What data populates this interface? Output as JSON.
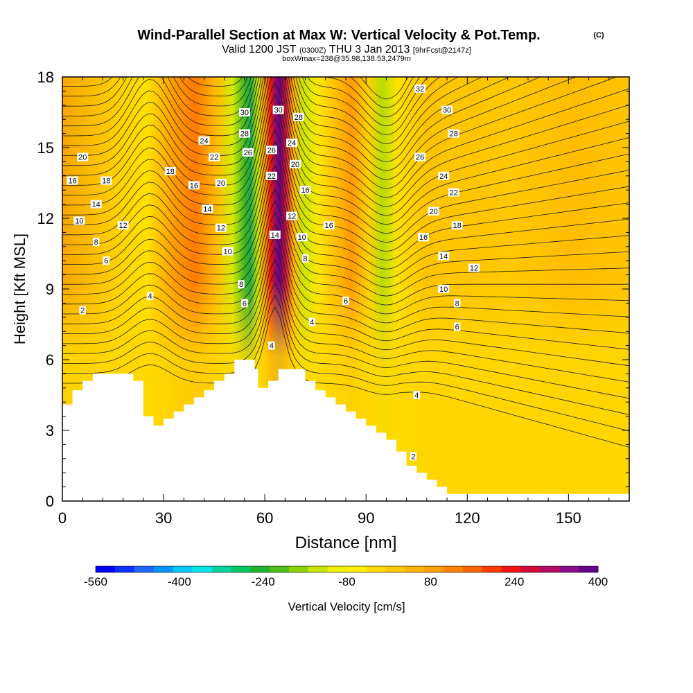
{
  "chart_data": {
    "type": "heatmap",
    "title": "Wind-Parallel Section at Max W: Vertical Velocity & Pot.Temp.",
    "title_mark": "(C)",
    "subtitle": {
      "valid": "Valid 1200 JST",
      "utc": "(0300Z)",
      "date": "THU 3 Jan 2013",
      "forecast": "[9hrFcst@2147z]",
      "boxwmax": "boxWmax=238@35.98,138.53,2479m"
    },
    "xlabel": "Distance [nm]",
    "ylabel": "Height [Kft MSL]",
    "xlim": [
      0,
      168
    ],
    "ylim": [
      0,
      18
    ],
    "x_ticks": [
      "0",
      "30",
      "60",
      "90",
      "120",
      "150"
    ],
    "x_tick_values": [
      0,
      30,
      60,
      90,
      120,
      150
    ],
    "y_ticks": [
      "0",
      "3",
      "6",
      "9",
      "12",
      "15",
      "18"
    ],
    "y_tick_values": [
      0,
      3,
      6,
      9,
      12,
      15,
      18
    ],
    "colorbar": {
      "label": "Vertical Velocity [cm/s]",
      "tick_labels": [
        "-560",
        "-400",
        "-240",
        "-80",
        "80",
        "240",
        "400"
      ],
      "colors": [
        "#0000ff",
        "#0b32ff",
        "#1e64ff",
        "#0096ff",
        "#00c8ff",
        "#00e6e6",
        "#00d2a0",
        "#00c864",
        "#1eb432",
        "#50be19",
        "#8cd200",
        "#c8e600",
        "#f0f000",
        "#fff000",
        "#ffdc00",
        "#ffc800",
        "#ffb400",
        "#ffa000",
        "#ff8200",
        "#ff6400",
        "#ff3c00",
        "#f01414",
        "#d20a3c",
        "#b40a64",
        "#8c0a8c",
        "#64008c"
      ]
    },
    "vertical_velocity_features": [
      {
        "name": "background",
        "value_range": [
          0,
          40
        ]
      },
      {
        "name": "updraft core",
        "x": 62,
        "y": [
          7,
          18
        ],
        "max_value": 400
      },
      {
        "name": "downdraft band",
        "x": 54,
        "y": [
          7,
          18
        ],
        "min_value": -160
      },
      {
        "name": "upwind updraft band",
        "x": 34,
        "y": [
          8,
          18
        ],
        "max_value": 240
      },
      {
        "name": "downwind downdraft band",
        "x": 91,
        "y": [
          10,
          18
        ],
        "min_value": -120
      }
    ],
    "theta_contour_labels": [
      {
        "text": "32",
        "x": 106,
        "y": 17.5
      },
      {
        "text": "30",
        "x": 114,
        "y": 16.6
      },
      {
        "text": "30",
        "x": 54,
        "y": 16.5
      },
      {
        "text": "30",
        "x": 64,
        "y": 16.6
      },
      {
        "text": "28",
        "x": 70,
        "y": 16.3
      },
      {
        "text": "28",
        "x": 116,
        "y": 15.6
      },
      {
        "text": "28",
        "x": 54,
        "y": 15.6
      },
      {
        "text": "26",
        "x": 106,
        "y": 14.6
      },
      {
        "text": "26",
        "x": 55,
        "y": 14.8
      },
      {
        "text": "26",
        "x": 62,
        "y": 14.9
      },
      {
        "text": "24",
        "x": 42,
        "y": 15.3
      },
      {
        "text": "24",
        "x": 68,
        "y": 15.2
      },
      {
        "text": "24",
        "x": 113,
        "y": 13.8
      },
      {
        "text": "22",
        "x": 45,
        "y": 14.6
      },
      {
        "text": "22",
        "x": 62,
        "y": 13.8
      },
      {
        "text": "22",
        "x": 116,
        "y": 13.1
      },
      {
        "text": "20",
        "x": 6,
        "y": 14.6
      },
      {
        "text": "20",
        "x": 47,
        "y": 13.5
      },
      {
        "text": "20",
        "x": 69,
        "y": 14.3
      },
      {
        "text": "20",
        "x": 110,
        "y": 12.3
      },
      {
        "text": "18",
        "x": 32,
        "y": 14.0
      },
      {
        "text": "18",
        "x": 13,
        "y": 13.6
      },
      {
        "text": "18",
        "x": 117,
        "y": 11.7
      },
      {
        "text": "16",
        "x": 3,
        "y": 13.6
      },
      {
        "text": "16",
        "x": 39,
        "y": 13.4
      },
      {
        "text": "16",
        "x": 72,
        "y": 13.2
      },
      {
        "text": "16",
        "x": 79,
        "y": 11.7
      },
      {
        "text": "16",
        "x": 107,
        "y": 11.2
      },
      {
        "text": "14",
        "x": 10,
        "y": 12.6
      },
      {
        "text": "14",
        "x": 43,
        "y": 12.4
      },
      {
        "text": "14",
        "x": 63,
        "y": 11.3
      },
      {
        "text": "14",
        "x": 113,
        "y": 10.4
      },
      {
        "text": "12",
        "x": 18,
        "y": 11.7
      },
      {
        "text": "12",
        "x": 47,
        "y": 11.6
      },
      {
        "text": "12",
        "x": 68,
        "y": 12.1
      },
      {
        "text": "12",
        "x": 122,
        "y": 9.9
      },
      {
        "text": "10",
        "x": 5,
        "y": 11.9
      },
      {
        "text": "10",
        "x": 49,
        "y": 10.6
      },
      {
        "text": "10",
        "x": 71,
        "y": 11.2
      },
      {
        "text": "10",
        "x": 113,
        "y": 9.0
      },
      {
        "text": "8",
        "x": 10,
        "y": 11.0
      },
      {
        "text": "8",
        "x": 53,
        "y": 9.2
      },
      {
        "text": "8",
        "x": 72,
        "y": 10.3
      },
      {
        "text": "8",
        "x": 117,
        "y": 8.4
      },
      {
        "text": "6",
        "x": 13,
        "y": 10.2
      },
      {
        "text": "6",
        "x": 54,
        "y": 8.4
      },
      {
        "text": "6",
        "x": 84,
        "y": 8.5
      },
      {
        "text": "6",
        "x": 117,
        "y": 7.4
      },
      {
        "text": "4",
        "x": 26,
        "y": 8.7
      },
      {
        "text": "4",
        "x": 62,
        "y": 6.6
      },
      {
        "text": "4",
        "x": 74,
        "y": 7.6
      },
      {
        "text": "4",
        "x": 105,
        "y": 4.5
      },
      {
        "text": "2",
        "x": 6,
        "y": 8.1
      },
      {
        "text": "2",
        "x": 104,
        "y": 1.9
      }
    ],
    "terrain_profile": [
      [
        0,
        4.1
      ],
      [
        3,
        4.1
      ],
      [
        3,
        4.7
      ],
      [
        6,
        4.7
      ],
      [
        6,
        5.1
      ],
      [
        9,
        5.1
      ],
      [
        9,
        5.4
      ],
      [
        21,
        5.4
      ],
      [
        21,
        5.1
      ],
      [
        24,
        5.1
      ],
      [
        24,
        3.6
      ],
      [
        27,
        3.6
      ],
      [
        27,
        3.2
      ],
      [
        30,
        3.2
      ],
      [
        30,
        3.5
      ],
      [
        33,
        3.5
      ],
      [
        33,
        3.8
      ],
      [
        36,
        3.8
      ],
      [
        36,
        4.1
      ],
      [
        39,
        4.1
      ],
      [
        39,
        4.4
      ],
      [
        42,
        4.4
      ],
      [
        42,
        4.7
      ],
      [
        45,
        4.7
      ],
      [
        45,
        5.1
      ],
      [
        48,
        5.1
      ],
      [
        48,
        5.4
      ],
      [
        51,
        5.4
      ],
      [
        51,
        6.0
      ],
      [
        57,
        6.0
      ],
      [
        57,
        5.6
      ],
      [
        58,
        5.6
      ],
      [
        58,
        4.8
      ],
      [
        61,
        4.8
      ],
      [
        61,
        5.1
      ],
      [
        64,
        5.1
      ],
      [
        64,
        5.6
      ],
      [
        72,
        5.6
      ],
      [
        72,
        5.1
      ],
      [
        75,
        5.1
      ],
      [
        75,
        4.7
      ],
      [
        78,
        4.7
      ],
      [
        78,
        4.4
      ],
      [
        81,
        4.4
      ],
      [
        81,
        4.1
      ],
      [
        84,
        4.1
      ],
      [
        84,
        3.8
      ],
      [
        87,
        3.8
      ],
      [
        87,
        3.5
      ],
      [
        90,
        3.5
      ],
      [
        90,
        3.2
      ],
      [
        93,
        3.2
      ],
      [
        93,
        2.9
      ],
      [
        96,
        2.9
      ],
      [
        96,
        2.6
      ],
      [
        99,
        2.6
      ],
      [
        99,
        2.1
      ],
      [
        102,
        2.1
      ],
      [
        102,
        1.5
      ],
      [
        105,
        1.5
      ],
      [
        105,
        1.2
      ],
      [
        108,
        1.2
      ],
      [
        108,
        0.9
      ],
      [
        111,
        0.9
      ],
      [
        111,
        0.6
      ],
      [
        114,
        0.6
      ],
      [
        114,
        0.3
      ],
      [
        168,
        0.3
      ]
    ]
  }
}
